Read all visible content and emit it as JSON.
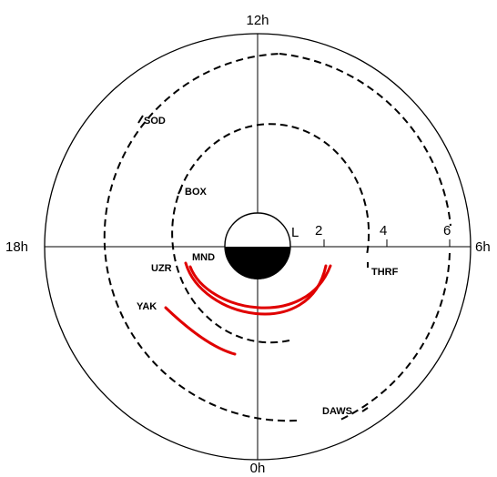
{
  "time_labels": {
    "top": "12h",
    "left": "18h",
    "right": "6h",
    "bottom": "0h"
  },
  "scale": {
    "l": "L",
    "two": "2",
    "four": "4",
    "six": "6"
  },
  "stations": {
    "sod": "SOD",
    "box": "BOX",
    "mnd": "MND",
    "uzr": "UZR",
    "yak": "YAK",
    "thrf": "THRF",
    "daws": "DAWS"
  },
  "colors": {
    "red_arc": "#e00000",
    "dashed": "#000000"
  }
}
